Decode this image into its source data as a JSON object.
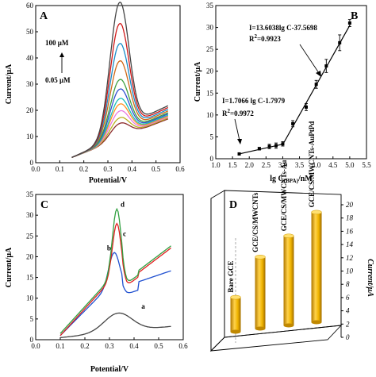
{
  "chart_data": [
    {
      "panel": "A",
      "type": "line",
      "xlabel": "Potential/V",
      "ylabel": "Current/μA",
      "xlim": [
        0.0,
        0.6
      ],
      "ylim": [
        0,
        60
      ],
      "xticks": [
        "0.0",
        "0.1",
        "0.2",
        "0.3",
        "0.4",
        "0.5",
        "0.6"
      ],
      "yticks": [
        "0",
        "10",
        "20",
        "30",
        "40",
        "50",
        "60"
      ],
      "annotations": [
        "100 μM",
        "0.05 μM"
      ],
      "series_peaks": [
        12,
        14,
        16.5,
        19,
        21,
        24.5,
        28,
        35,
        41.5,
        49,
        57
      ],
      "series_colors": [
        "#8b2a2a",
        "#b8b020",
        "#e878e0",
        "#ff9020",
        "#18c0b8",
        "#3050d0",
        "#40a040",
        "#d06818",
        "#1a8cc8",
        "#d01818",
        "#444444"
      ],
      "x_start": 0.15,
      "x_end": 0.55
    },
    {
      "panel": "B",
      "type": "scatter",
      "xlabel_main": "lg C",
      "xlabel_sub": "(BPA)",
      "xlabel_unit": "/nM",
      "ylabel": "Current/μA",
      "xlim": [
        1.0,
        5.5
      ],
      "ylim": [
        0,
        35
      ],
      "xticks": [
        "1.0",
        "1.5",
        "2.0",
        "2.5",
        "3.0",
        "3.5",
        "4.0",
        "4.5",
        "5.0",
        "5.5"
      ],
      "yticks": [
        "0",
        "5",
        "10",
        "15",
        "20",
        "25",
        "30",
        "35"
      ],
      "x": [
        1.7,
        2.3,
        2.6,
        2.8,
        3.0,
        3.3,
        3.7,
        4.0,
        4.3,
        4.7,
        5.0
      ],
      "y": [
        1.1,
        2.3,
        2.8,
        3.0,
        3.4,
        8.0,
        11.8,
        17.0,
        21.2,
        26.5,
        31.0
      ],
      "yerr": [
        0.2,
        0.3,
        0.5,
        0.6,
        0.5,
        0.7,
        0.8,
        0.9,
        1.5,
        1.8,
        0.8
      ],
      "fit_low": {
        "eq": "I=1.7066 lg C-1.7979",
        "r2_label": "R",
        "r2_sup": "2",
        "r2_value": "=0.9972",
        "x": [
          1.7,
          3.0
        ]
      },
      "fit_high": {
        "eq": "I=13.6038lg C-37.5698",
        "r2_label": "R",
        "r2_sup": "2",
        "r2_value": "=0.9923",
        "x": [
          3.0,
          5.0
        ]
      }
    },
    {
      "panel": "C",
      "type": "line",
      "xlabel": "Potential/V",
      "ylabel": "Current/μA",
      "xlim": [
        0.0,
        0.6
      ],
      "ylim": [
        0,
        35
      ],
      "xticks": [
        "0.0",
        "0.1",
        "0.2",
        "0.3",
        "0.4",
        "0.5",
        "0.6"
      ],
      "yticks": [
        "0",
        "5",
        "10",
        "15",
        "20",
        "25",
        "30",
        "35"
      ],
      "series": [
        {
          "name": "a",
          "color": "#444444",
          "peak": 6.5
        },
        {
          "name": "b",
          "color": "#2050d0",
          "peak": 21.0
        },
        {
          "name": "c",
          "color": "#e02020",
          "peak": 28.0
        },
        {
          "name": "d",
          "color": "#30a040",
          "peak": 31.5
        }
      ]
    },
    {
      "panel": "D",
      "type": "bar",
      "ylabel": "Current/μA",
      "ylim": [
        0,
        20
      ],
      "yticks": [
        "0",
        "2",
        "4",
        "6",
        "8",
        "10",
        "12",
        "14",
        "16",
        "18",
        "20"
      ],
      "categories": [
        "Bare GCE",
        "GCE/CS/MWCNTs",
        "GCE/CS/MWCNTs-Au",
        "GCE/CS/MWCNTs-AuPtPd"
      ],
      "values": [
        5.2,
        10.8,
        13.5,
        16.6
      ],
      "bar_color": "#f0b400"
    }
  ]
}
